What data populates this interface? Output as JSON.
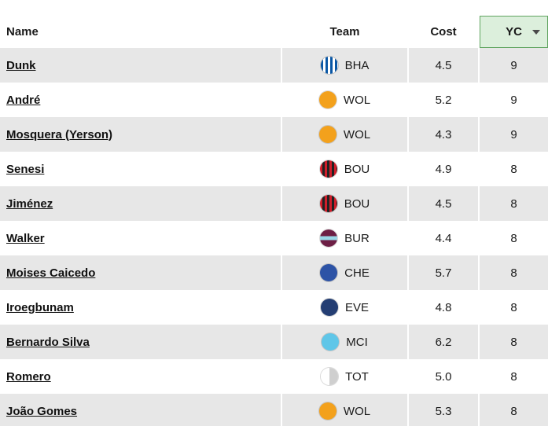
{
  "table": {
    "columns": [
      {
        "key": "name",
        "label": "Name"
      },
      {
        "key": "team",
        "label": "Team"
      },
      {
        "key": "cost",
        "label": "Cost"
      },
      {
        "key": "yc",
        "label": "YC",
        "sorted": true,
        "sort_direction": "desc"
      }
    ],
    "rows": [
      {
        "name": "Dunk",
        "team": "BHA",
        "cost": "4.5",
        "yc": "9"
      },
      {
        "name": "André",
        "team": "WOL",
        "cost": "5.2",
        "yc": "9"
      },
      {
        "name": "Mosquera (Yerson)",
        "team": "WOL",
        "cost": "4.3",
        "yc": "9"
      },
      {
        "name": "Senesi",
        "team": "BOU",
        "cost": "4.9",
        "yc": "8"
      },
      {
        "name": "Jiménez",
        "team": "BOU",
        "cost": "4.5",
        "yc": "8"
      },
      {
        "name": "Walker",
        "team": "BUR",
        "cost": "4.4",
        "yc": "8"
      },
      {
        "name": "Moises Caicedo",
        "team": "CHE",
        "cost": "5.7",
        "yc": "8"
      },
      {
        "name": "Iroegbunam",
        "team": "EVE",
        "cost": "4.8",
        "yc": "8"
      },
      {
        "name": "Bernardo Silva",
        "team": "MCI",
        "cost": "6.2",
        "yc": "8"
      },
      {
        "name": "Romero",
        "team": "TOT",
        "cost": "5.0",
        "yc": "8"
      },
      {
        "name": "João Gomes",
        "team": "WOL",
        "cost": "5.3",
        "yc": "8"
      }
    ],
    "team_badges": {
      "BHA": {
        "style": "vertical-stripes",
        "colors": [
          "#0a57a5",
          "#ffffff"
        ]
      },
      "WOL": {
        "style": "solid",
        "colors": [
          "#f3a11c"
        ]
      },
      "BOU": {
        "style": "vertical-stripes",
        "colors": [
          "#d01e2a",
          "#222222"
        ]
      },
      "BUR": {
        "style": "horizontal-band",
        "colors": [
          "#6d1f45",
          "#9ad7e8"
        ]
      },
      "CHE": {
        "style": "solid",
        "colors": [
          "#2d53a6"
        ]
      },
      "EVE": {
        "style": "solid",
        "colors": [
          "#243e73"
        ]
      },
      "MCI": {
        "style": "solid",
        "colors": [
          "#5fc6e8"
        ]
      },
      "TOT": {
        "style": "half-split",
        "colors": [
          "#ffffff",
          "#cfcfcf"
        ]
      }
    },
    "colors": {
      "sorted_header_bg": "#dcefdc",
      "sorted_header_border": "#5fa45f",
      "alt_row_bg": "#e7e7e7"
    }
  }
}
